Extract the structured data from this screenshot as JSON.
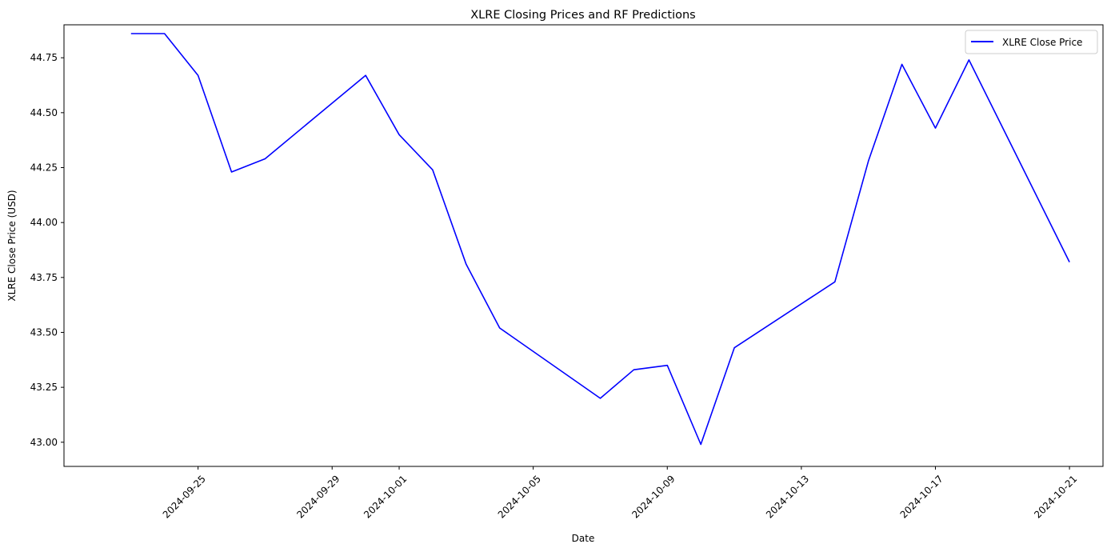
{
  "chart_data": {
    "type": "line",
    "title": "XLRE Closing Prices and RF Predictions",
    "xlabel": "Date",
    "ylabel": "XLRE Close Price (USD)",
    "xlim": [
      "2024-09-21",
      "2024-10-22"
    ],
    "ylim": [
      42.89,
      44.9
    ],
    "x_ticks": [
      "2024-09-25",
      "2024-09-29",
      "2024-10-01",
      "2024-10-05",
      "2024-10-09",
      "2024-10-13",
      "2024-10-17",
      "2024-10-21"
    ],
    "y_ticks": [
      "43.00",
      "43.25",
      "43.50",
      "43.75",
      "44.00",
      "44.25",
      "44.50",
      "44.75"
    ],
    "grid": false,
    "legend": "top-right",
    "series": [
      {
        "name": "XLRE Close Price",
        "color": "#0000ff",
        "x": [
          "2024-09-23",
          "2024-09-24",
          "2024-09-25",
          "2024-09-26",
          "2024-09-27",
          "2024-09-30",
          "2024-10-01",
          "2024-10-02",
          "2024-10-03",
          "2024-10-04",
          "2024-10-07",
          "2024-10-08",
          "2024-10-09",
          "2024-10-10",
          "2024-10-11",
          "2024-10-14",
          "2024-10-15",
          "2024-10-16",
          "2024-10-17",
          "2024-10-18",
          "2024-10-21"
        ],
        "values": [
          44.86,
          44.86,
          44.67,
          44.23,
          44.29,
          44.67,
          44.4,
          44.24,
          43.81,
          43.52,
          43.2,
          43.33,
          43.35,
          42.99,
          43.43,
          43.73,
          44.28,
          44.72,
          44.43,
          44.74,
          43.82
        ]
      }
    ]
  }
}
